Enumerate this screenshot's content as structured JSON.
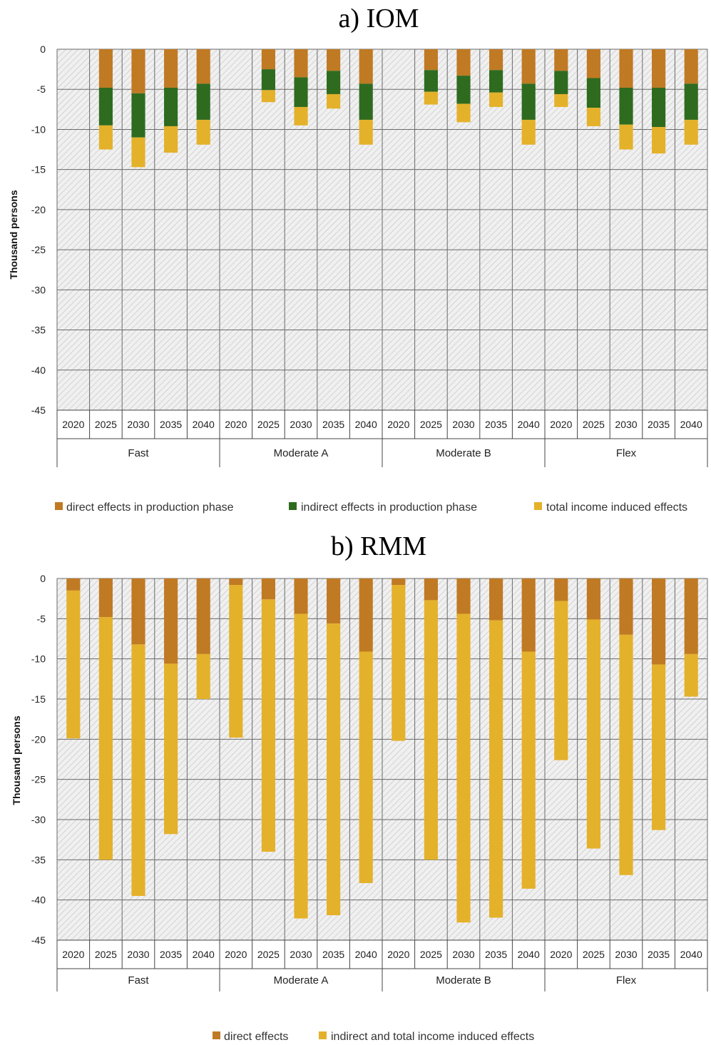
{
  "colors": {
    "direct": "#C07A23",
    "indirect": "#2E6B1F",
    "induced": "#E4B12A",
    "plot_bg": "#f0f0f0",
    "hatch": "#c8c8c8",
    "grid": "#6a6a6a"
  },
  "chart_data": [
    {
      "type": "bar",
      "stacked": true,
      "title": "a) IOM",
      "ylabel": "Thousand persons",
      "ylim": [
        -45,
        0
      ],
      "yticks": [
        0,
        -5,
        -10,
        -15,
        -20,
        -25,
        -30,
        -35,
        -40,
        -45
      ],
      "grid": true,
      "legend_position": "bottom",
      "groups": [
        "Fast",
        "Moderate A",
        "Moderate B",
        "Flex"
      ],
      "years": [
        "2020",
        "2025",
        "2030",
        "2035",
        "2040"
      ],
      "series": [
        {
          "name": "direct effects in production phase",
          "color_key": "direct",
          "values": [
            [
              0,
              -4.8,
              -5.5,
              -4.8,
              -4.3
            ],
            [
              0,
              -2.5,
              -3.5,
              -2.7,
              -4.3
            ],
            [
              0,
              -2.6,
              -3.3,
              -2.6,
              -4.3
            ],
            [
              -2.7,
              -3.6,
              -4.8,
              -4.8,
              -4.3
            ]
          ]
        },
        {
          "name": "indirect effects in production phase",
          "color_key": "indirect",
          "values": [
            [
              0,
              -4.7,
              -5.5,
              -4.8,
              -4.5
            ],
            [
              0,
              -2.6,
              -3.7,
              -2.9,
              -4.5
            ],
            [
              0,
              -2.7,
              -3.5,
              -2.8,
              -4.5
            ],
            [
              -2.9,
              -3.7,
              -4.6,
              -4.9,
              -4.5
            ]
          ]
        },
        {
          "name": "total income induced effects",
          "color_key": "induced",
          "values": [
            [
              0,
              -3.0,
              -3.7,
              -3.3,
              -3.1
            ],
            [
              0,
              -1.5,
              -2.3,
              -1.8,
              -3.1
            ],
            [
              0,
              -1.6,
              -2.3,
              -1.8,
              -3.1
            ],
            [
              -1.6,
              -2.3,
              -3.1,
              -3.3,
              -3.1
            ]
          ]
        }
      ]
    },
    {
      "type": "bar",
      "stacked": true,
      "title": "b) RMM",
      "ylabel": "Thousand persons",
      "ylim": [
        -45,
        0
      ],
      "yticks": [
        0,
        -5,
        -10,
        -15,
        -20,
        -25,
        -30,
        -35,
        -40,
        -45
      ],
      "grid": true,
      "legend_position": "bottom",
      "groups": [
        "Fast",
        "Moderate A",
        "Moderate B",
        "Flex"
      ],
      "years": [
        "2020",
        "2025",
        "2030",
        "2035",
        "2040"
      ],
      "series": [
        {
          "name": "direct effects",
          "color_key": "direct",
          "values": [
            [
              -1.5,
              -4.8,
              -8.2,
              -10.6,
              -9.4
            ],
            [
              -0.8,
              -2.6,
              -4.4,
              -5.6,
              -9.1
            ],
            [
              -0.8,
              -2.7,
              -4.4,
              -5.2,
              -9.1
            ],
            [
              -2.8,
              -5.1,
              -7.0,
              -10.7,
              -9.4
            ]
          ]
        },
        {
          "name": "indirect and total income induced effects",
          "color_key": "induced",
          "values": [
            [
              -18.4,
              -30.2,
              -31.3,
              -21.2,
              -5.6
            ],
            [
              -19.0,
              -31.4,
              -37.9,
              -36.3,
              -28.8
            ],
            [
              -19.4,
              -32.3,
              -38.4,
              -37.0,
              -29.5
            ],
            [
              -19.8,
              -28.5,
              -29.9,
              -20.6,
              -5.3
            ]
          ]
        }
      ]
    }
  ]
}
